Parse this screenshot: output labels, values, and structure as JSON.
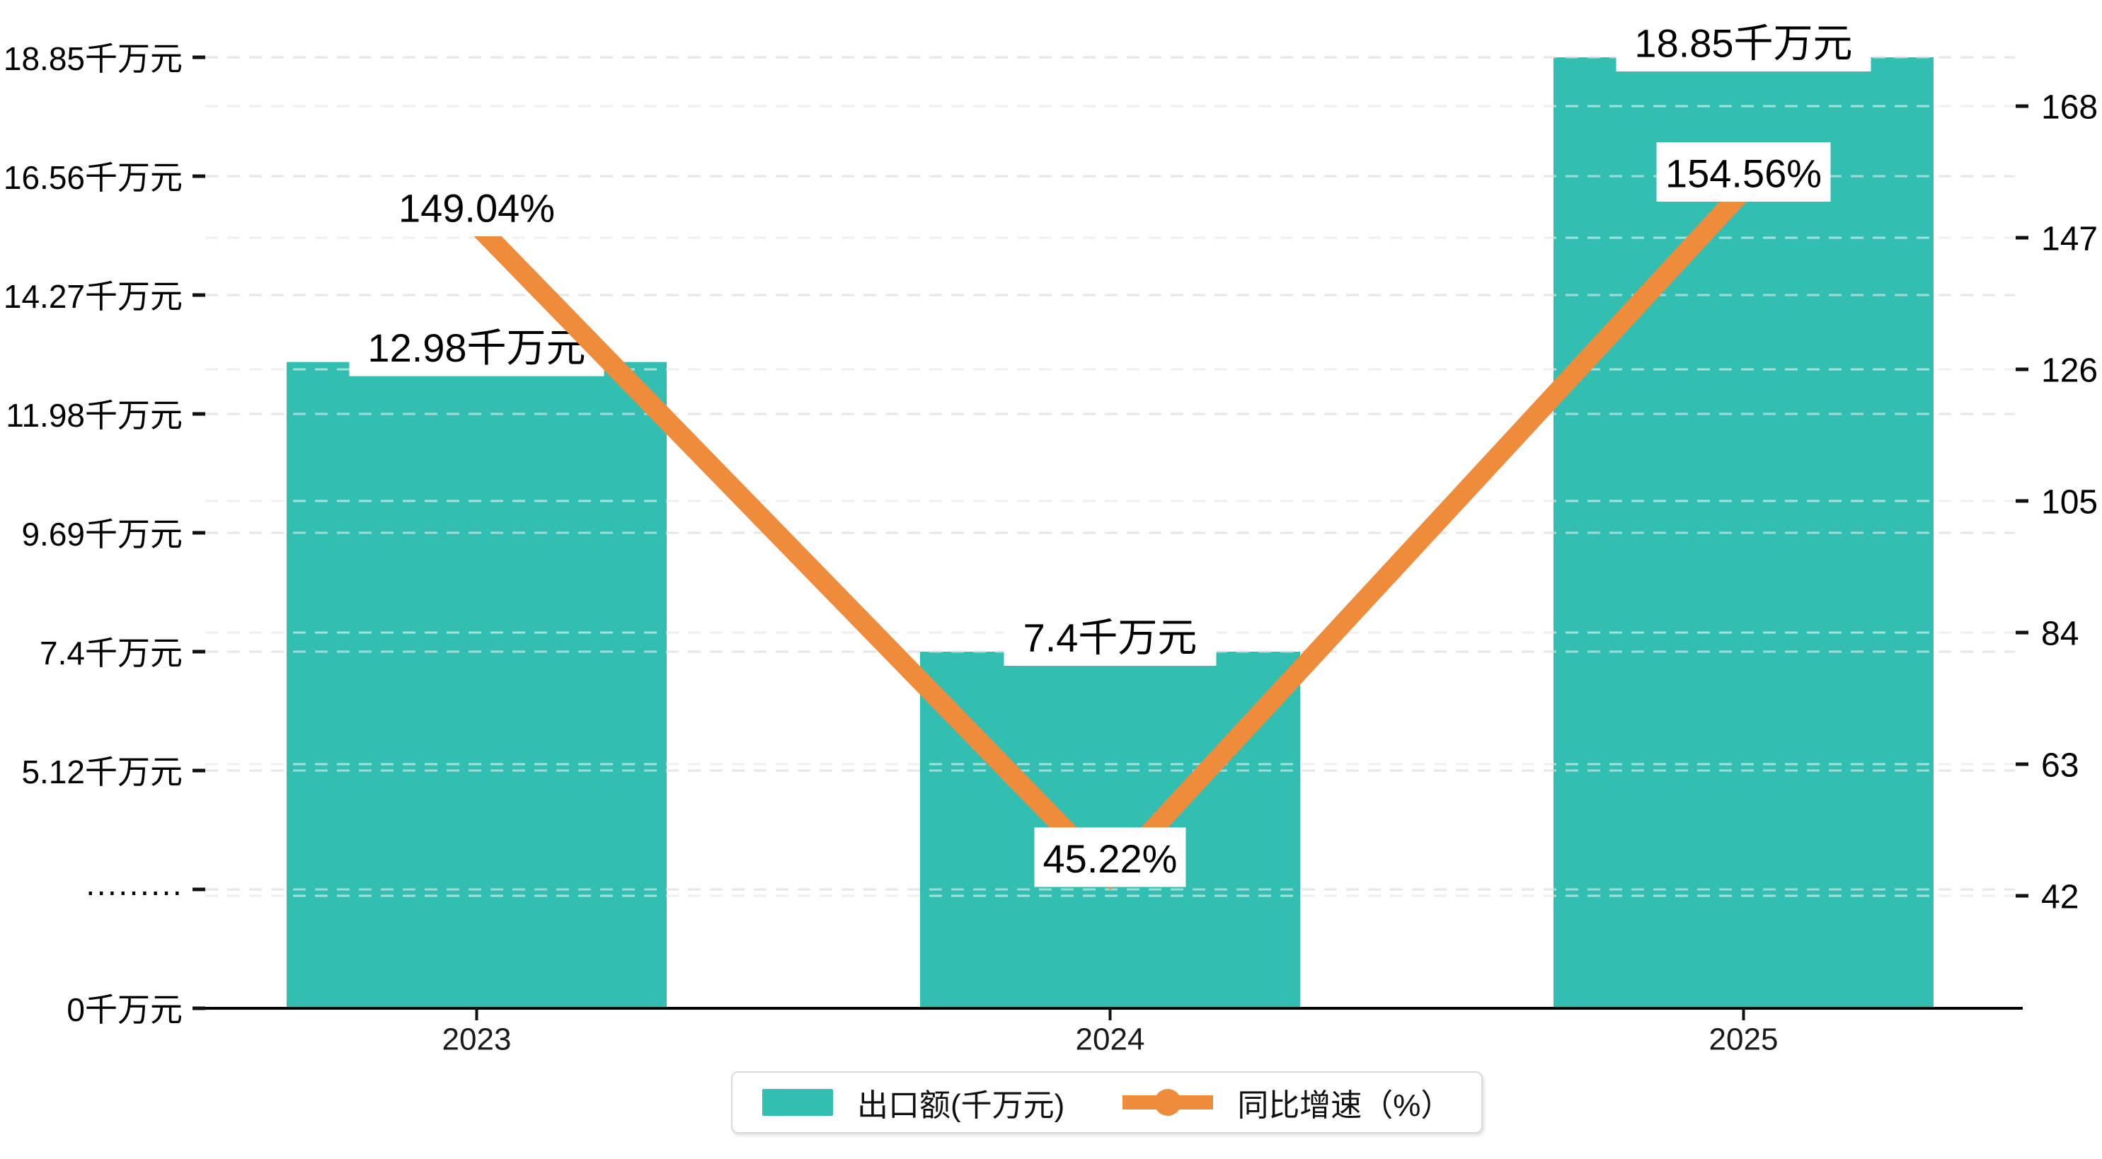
{
  "chart_data": {
    "type": "bar-line-combo",
    "categories": [
      "2023",
      "2024",
      "2025"
    ],
    "series": [
      {
        "name": "出口额(千万元)",
        "type": "bar",
        "axis": "left",
        "values": [
          12.98,
          7.4,
          18.85
        ],
        "labels": [
          "12.98千万元",
          "7.4千万元",
          "18.85千万元"
        ]
      },
      {
        "name": "同比增速（%）",
        "type": "line",
        "axis": "right",
        "values": [
          149.04,
          45.22,
          154.56
        ],
        "labels": [
          "149.04%",
          "45.22%",
          "154.56%"
        ]
      }
    ],
    "left_axis": {
      "tick_labels": [
        "0千万元",
        "·········",
        "5.12千万元",
        "7.4千万元",
        "9.69千万元",
        "11.98千万元",
        "14.27千万元",
        "16.56千万元",
        "18.85千万元"
      ],
      "max": 18.85
    },
    "right_axis": {
      "tick_labels": [
        "42",
        "63",
        "84",
        "105",
        "126",
        "147",
        "168"
      ],
      "min": 42,
      "max": 168
    },
    "grid": "horizontal-dashed",
    "legend_position": "bottom-center"
  },
  "legend": {
    "bar_label": "出口额(千万元)",
    "line_label": "同比增速（%）"
  },
  "colors": {
    "bar": "#33beb2",
    "line": "#ee8c3c",
    "text": "#000000",
    "x_label": "#1a1a1a",
    "grid_major": "#e6e6e6",
    "grid_secondary": "#f0efee",
    "axis_line": "#000000",
    "tick": "#111111",
    "label_box_bg": "#ffffff",
    "legend_border": "#d9d9d9"
  }
}
